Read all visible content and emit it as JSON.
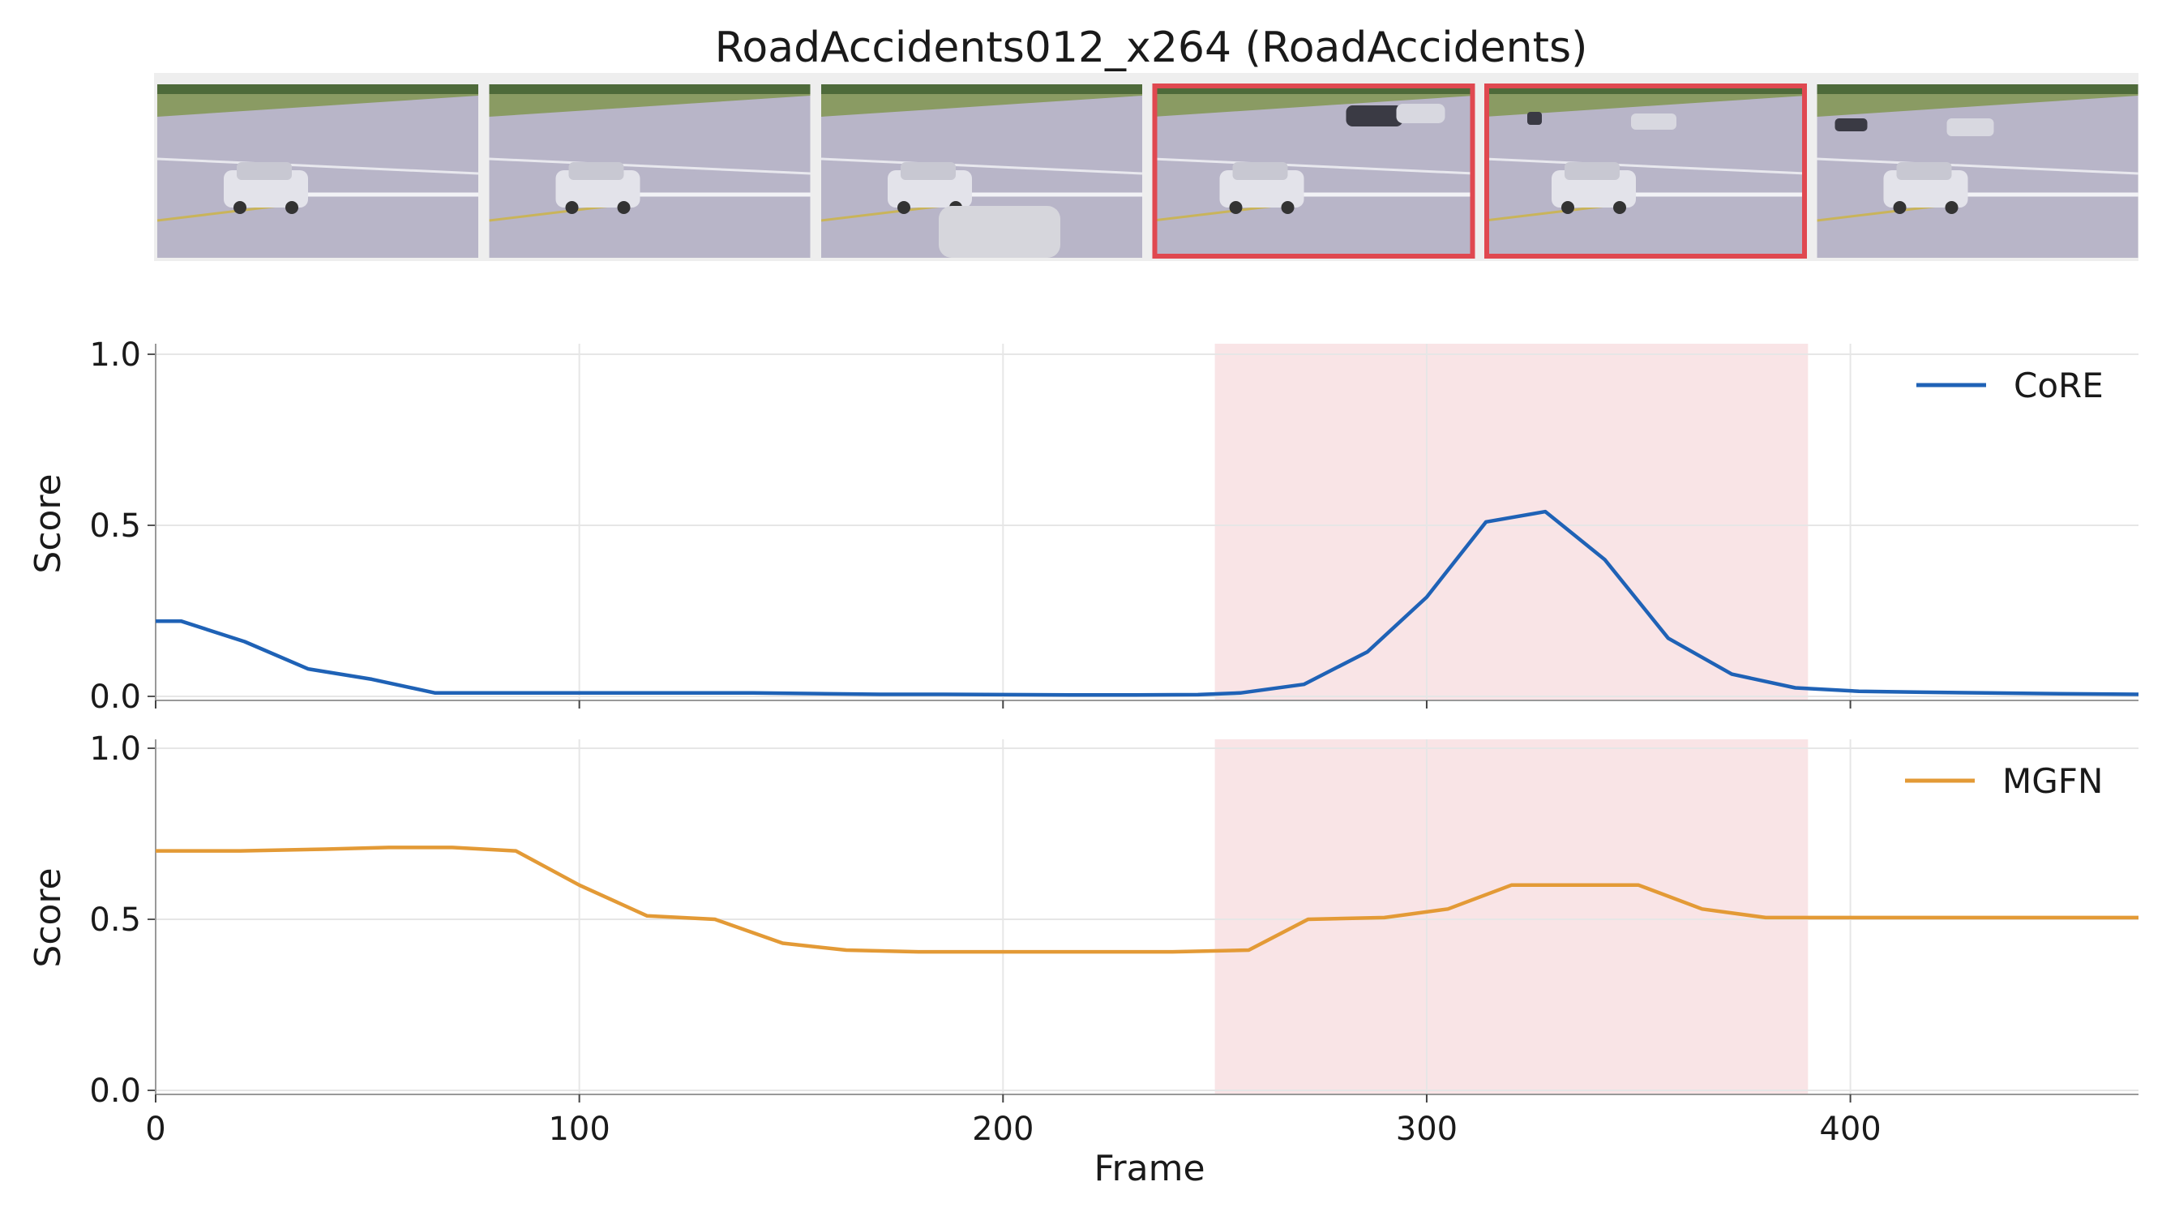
{
  "title": "RoadAccidents012_x264 (RoadAccidents)",
  "thumbnails": {
    "count": 6,
    "highlighted": [
      3,
      4
    ],
    "highlight_color": "#e04850"
  },
  "colors": {
    "core": "#1f62b6",
    "mgfn": "#e39a36",
    "anomaly_span": "#f9e4e6",
    "grid": "#e6e6e6",
    "axis": "#999999"
  },
  "chart_data": [
    {
      "type": "line",
      "xlabel": "",
      "ylabel": "Score",
      "xlim": [
        0,
        468
      ],
      "ylim": [
        0,
        1
      ],
      "yticks": [
        "0.0",
        "0.5",
        "1.0"
      ],
      "xticks": [
        100,
        200,
        300,
        400
      ],
      "grid": true,
      "legend": "top-right",
      "anomaly_span": [
        250,
        390
      ],
      "series": [
        {
          "name": "CoRE",
          "x": [
            0,
            6,
            21,
            36,
            51,
            66,
            81,
            96,
            111,
            126,
            141,
            156,
            171,
            186,
            201,
            216,
            231,
            246,
            256,
            271,
            286,
            300,
            314,
            328,
            342,
            357,
            372,
            387,
            402,
            417,
            432,
            447,
            468
          ],
          "y": [
            0.22,
            0.22,
            0.16,
            0.08,
            0.05,
            0.01,
            0.01,
            0.01,
            0.01,
            0.01,
            0.01,
            0.008,
            0.006,
            0.006,
            0.005,
            0.004,
            0.004,
            0.005,
            0.01,
            0.035,
            0.13,
            0.29,
            0.51,
            0.54,
            0.4,
            0.17,
            0.065,
            0.025,
            0.015,
            0.012,
            0.01,
            0.008,
            0.006
          ]
        }
      ]
    },
    {
      "type": "line",
      "xlabel": "Frame",
      "ylabel": "Score",
      "xlim": [
        0,
        468
      ],
      "ylim": [
        0,
        1
      ],
      "yticks": [
        "0.0",
        "0.5",
        "1.0"
      ],
      "xticks": [
        "0",
        "100",
        "200",
        "300",
        "400"
      ],
      "grid": true,
      "legend": "top-right",
      "anomaly_span": [
        250,
        390
      ],
      "series": [
        {
          "name": "MGFN",
          "x": [
            0,
            20,
            40,
            55,
            70,
            85,
            100,
            116,
            132,
            148,
            163,
            180,
            200,
            220,
            240,
            258,
            272,
            290,
            305,
            320,
            335,
            350,
            365,
            380,
            400,
            420,
            440,
            468
          ],
          "y": [
            0.7,
            0.7,
            0.705,
            0.71,
            0.71,
            0.7,
            0.6,
            0.51,
            0.5,
            0.43,
            0.41,
            0.405,
            0.405,
            0.405,
            0.405,
            0.41,
            0.5,
            0.505,
            0.53,
            0.6,
            0.6,
            0.6,
            0.53,
            0.505,
            0.505,
            0.505,
            0.505,
            0.505
          ]
        }
      ]
    }
  ]
}
